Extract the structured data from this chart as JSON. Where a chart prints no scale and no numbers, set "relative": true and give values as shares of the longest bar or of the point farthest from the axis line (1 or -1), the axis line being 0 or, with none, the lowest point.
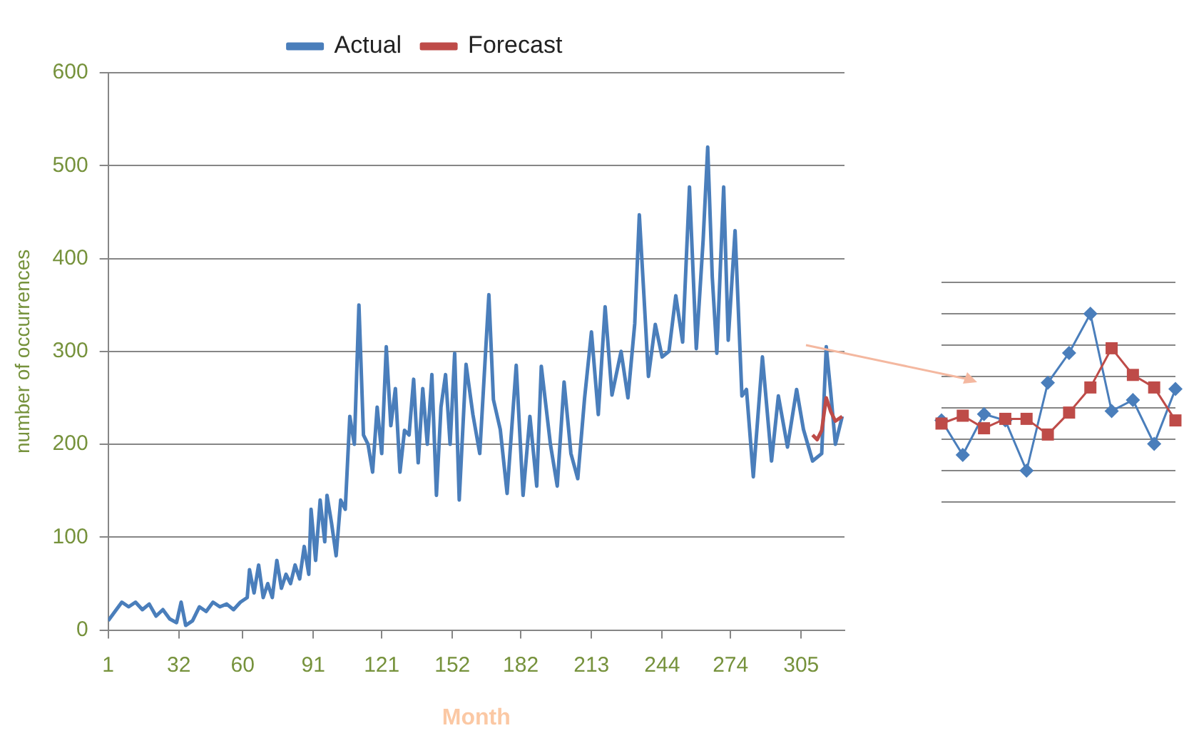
{
  "chart_data": [
    {
      "type": "line",
      "xlabel": "Month",
      "ylabel": "number of occurrences",
      "xlim": [
        1,
        324
      ],
      "xticks": [
        1,
        32,
        60,
        91,
        121,
        152,
        182,
        213,
        244,
        274,
        305
      ],
      "ylim": [
        0,
        600
      ],
      "yticks": [
        0,
        100,
        200,
        300,
        400,
        500,
        600
      ],
      "grid": "y",
      "legend": "top",
      "marker": "none",
      "series": [
        {
          "name": "Actual",
          "color": "#4a7ebb",
          "x": [
            1,
            4,
            7,
            10,
            13,
            16,
            19,
            22,
            25,
            28,
            31,
            33,
            35,
            38,
            41,
            44,
            47,
            50,
            53,
            56,
            59,
            62,
            63,
            65,
            67,
            69,
            71,
            73,
            75,
            77,
            79,
            81,
            83,
            85,
            87,
            89,
            90,
            92,
            94,
            96,
            97,
            99,
            101,
            103,
            105,
            107,
            109,
            111,
            113,
            115,
            117,
            119,
            121,
            123,
            125,
            127,
            129,
            131,
            133,
            135,
            137,
            139,
            141,
            143,
            145,
            147,
            149,
            151,
            153,
            155,
            158,
            161,
            164,
            168,
            170,
            173,
            176,
            180,
            183,
            186,
            189,
            191,
            195,
            198,
            201,
            204,
            207,
            210,
            213,
            216,
            219,
            222,
            226,
            229,
            232,
            234,
            236,
            238,
            241,
            244,
            247,
            250,
            253,
            256,
            259,
            262,
            264,
            266,
            268,
            271,
            273,
            276,
            279,
            281,
            284,
            288,
            292,
            295,
            299,
            303,
            306,
            310,
            314,
            316,
            318,
            320,
            323
          ],
          "values": [
            10,
            20,
            30,
            25,
            30,
            22,
            28,
            15,
            22,
            12,
            8,
            30,
            5,
            10,
            25,
            20,
            30,
            25,
            28,
            22,
            30,
            35,
            65,
            40,
            70,
            35,
            50,
            35,
            75,
            45,
            60,
            50,
            70,
            55,
            90,
            60,
            130,
            75,
            140,
            95,
            145,
            115,
            80,
            140,
            130,
            230,
            200,
            350,
            210,
            200,
            170,
            240,
            190,
            305,
            220,
            260,
            170,
            215,
            210,
            270,
            180,
            260,
            200,
            275,
            145,
            240,
            275,
            200,
            298,
            140,
            286,
            232,
            190,
            361,
            248,
            216,
            147,
            285,
            145,
            230,
            155,
            284,
            200,
            155,
            267,
            190,
            163,
            250,
            321,
            232,
            348,
            253,
            300,
            250,
            330,
            447,
            361,
            273,
            329,
            294,
            300,
            360,
            310,
            477,
            303,
            420,
            520,
            380,
            298,
            477,
            312,
            430,
            252,
            259,
            165,
            294,
            182,
            252,
            197,
            259,
            216,
            182,
            190,
            305,
            255,
            200,
            230
          ]
        },
        {
          "name": "Forecast",
          "color": "#be4b48",
          "x": [
            310,
            312,
            314,
            316,
            318,
            320,
            323
          ],
          "values": [
            210,
            205,
            215,
            250,
            235,
            225,
            230
          ]
        }
      ]
    },
    {
      "type": "line",
      "relative": true,
      "categories": [
        null,
        null,
        null,
        null,
        null,
        null,
        null,
        null,
        null,
        null,
        null,
        null
      ],
      "grid": "y",
      "series": [
        {
          "color": "#4a7ebb",
          "marker": "diamond",
          "values": [
            0.32,
            0.1,
            0.36,
            0.32,
            0,
            0.56,
            0.75,
            1,
            0.38,
            0.45,
            0.17,
            0.52
          ]
        },
        {
          "color": "#be4b48",
          "marker": "square",
          "values": [
            0.3,
            0.35,
            0.27,
            0.33,
            0.33,
            0.23,
            0.37,
            0.53,
            0.78,
            0.61,
            0.53,
            0.32
          ]
        }
      ]
    }
  ]
}
